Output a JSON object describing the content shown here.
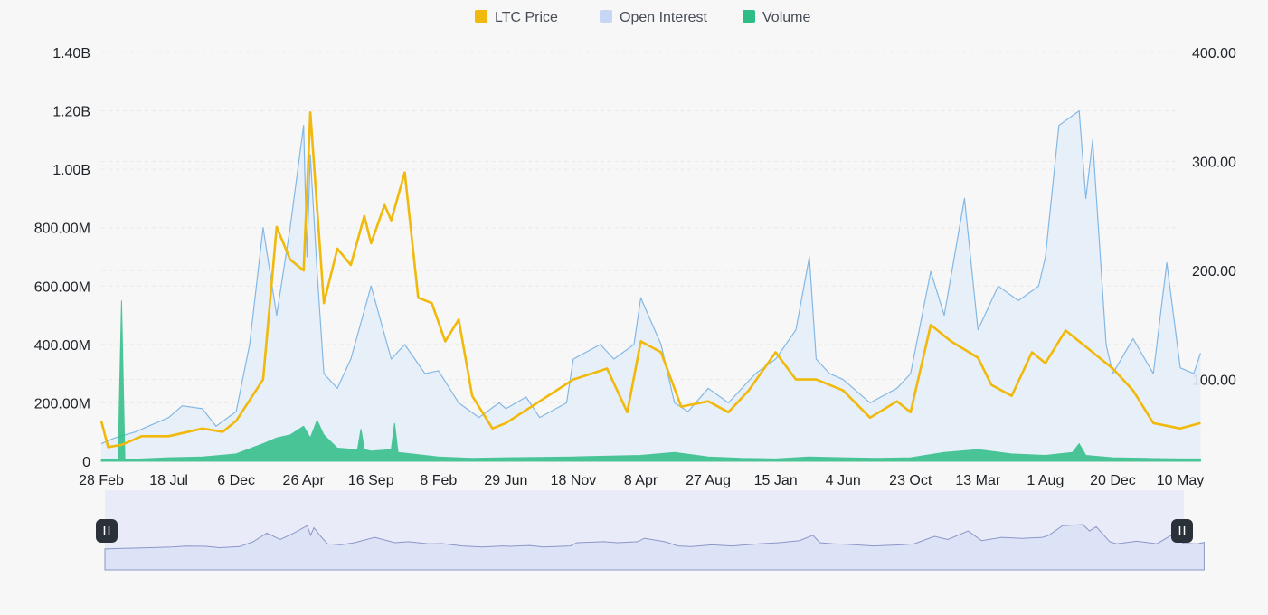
{
  "colors": {
    "price": "#f0b90b",
    "open_interest": "#84b8e4",
    "open_interest_fill": "#e4edf8",
    "volume": "#2ebd85",
    "navigator_fill": "#dde3f7",
    "navigator_line": "#8c96c8",
    "handle": "#2b3139"
  },
  "chart_data": {
    "type": "line",
    "legend": {
      "placement": "top-center",
      "items": [
        {
          "name": "LTC Price",
          "icon": "square-swatch-icon"
        },
        {
          "name": "Open Interest",
          "icon": "square-swatch-icon"
        },
        {
          "name": "Volume",
          "icon": "square-swatch-icon"
        }
      ]
    },
    "x_tick_labels": [
      "28 Feb",
      "18 Jul",
      "6 Dec",
      "26 Apr",
      "16 Sep",
      "8 Feb",
      "29 Jun",
      "18 Nov",
      "8 Apr",
      "27 Aug",
      "15 Jan",
      "4 Jun",
      "23 Oct",
      "13 Mar",
      "1 Aug",
      "20 Dec",
      "10 May"
    ],
    "y_left": {
      "ylim": [
        0,
        1400000000
      ],
      "tick_labels": [
        "0",
        "200.00M",
        "400.00M",
        "600.00M",
        "800.00M",
        "1.00B",
        "1.20B",
        "1.40B"
      ],
      "tick_values": [
        0,
        200000000,
        400000000,
        600000000,
        800000000,
        1000000000,
        1200000000,
        1400000000
      ]
    },
    "y_right": {
      "ylim": [
        25,
        400
      ],
      "tick_labels": [
        "100.00",
        "200.00",
        "300.00",
        "400.00"
      ],
      "tick_values": [
        100,
        200,
        300,
        400
      ]
    },
    "grid": true,
    "series": [
      {
        "name": "LTC Price",
        "axis": "right",
        "x_index": [
          0,
          0.1,
          0.3,
          0.6,
          1,
          1.5,
          1.8,
          2,
          2.4,
          2.6,
          2.8,
          3,
          3.1,
          3.3,
          3.5,
          3.7,
          3.9,
          4,
          4.2,
          4.3,
          4.5,
          4.7,
          4.9,
          5.1,
          5.3,
          5.5,
          5.8,
          6,
          6.5,
          7,
          7.5,
          7.8,
          8,
          8.3,
          8.6,
          9,
          9.3,
          9.6,
          10,
          10.3,
          10.6,
          11,
          11.4,
          11.8,
          12,
          12.3,
          12.6,
          13,
          13.2,
          13.5,
          13.8,
          14,
          14.3,
          14.6,
          14.8,
          15,
          15.3,
          15.6,
          16,
          16.3
        ],
        "values": [
          62,
          38,
          40,
          48,
          48,
          55,
          52,
          62,
          100,
          240,
          210,
          200,
          345,
          170,
          220,
          205,
          250,
          225,
          260,
          246,
          290,
          175,
          170,
          135,
          155,
          85,
          55,
          60,
          80,
          100,
          110,
          70,
          135,
          125,
          75,
          80,
          70,
          90,
          125,
          100,
          100,
          90,
          65,
          80,
          70,
          150,
          135,
          120,
          95,
          85,
          125,
          115,
          145,
          130,
          120,
          110,
          90,
          60,
          55,
          60
        ]
      },
      {
        "name": "Open Interest",
        "axis": "left",
        "x_index": [
          0,
          0.2,
          0.5,
          1,
          1.2,
          1.5,
          1.7,
          2,
          2.2,
          2.4,
          2.6,
          2.8,
          3,
          3.05,
          3.1,
          3.2,
          3.3,
          3.5,
          3.7,
          4,
          4.3,
          4.5,
          4.8,
          5,
          5.3,
          5.6,
          5.9,
          6,
          6.3,
          6.5,
          6.9,
          7,
          7.4,
          7.6,
          7.9,
          8,
          8.3,
          8.5,
          8.7,
          9,
          9.3,
          9.7,
          10,
          10.3,
          10.5,
          10.6,
          10.8,
          11,
          11.4,
          11.8,
          12,
          12.3,
          12.5,
          12.8,
          13,
          13.3,
          13.6,
          13.9,
          14,
          14.2,
          14.5,
          14.6,
          14.7,
          14.9,
          15,
          15.3,
          15.6,
          15.8,
          16,
          16.2,
          16.3
        ],
        "values": [
          60000000,
          80000000,
          100000000,
          150000000,
          190000000,
          180000000,
          120000000,
          170000000,
          400000000,
          800000000,
          500000000,
          800000000,
          1150000000,
          700000000,
          1050000000,
          650000000,
          300000000,
          250000000,
          350000000,
          600000000,
          350000000,
          400000000,
          300000000,
          310000000,
          200000000,
          150000000,
          200000000,
          180000000,
          220000000,
          150000000,
          200000000,
          350000000,
          400000000,
          350000000,
          400000000,
          560000000,
          400000000,
          200000000,
          170000000,
          250000000,
          200000000,
          300000000,
          350000000,
          450000000,
          700000000,
          350000000,
          300000000,
          280000000,
          200000000,
          250000000,
          300000000,
          650000000,
          500000000,
          900000000,
          450000000,
          600000000,
          550000000,
          600000000,
          700000000,
          1150000000,
          1200000000,
          900000000,
          1100000000,
          400000000,
          300000000,
          420000000,
          300000000,
          680000000,
          320000000,
          300000000,
          370000000
        ]
      },
      {
        "name": "Volume",
        "axis": "left",
        "x_index": [
          0,
          0.25,
          0.3,
          0.35,
          1,
          1.5,
          2,
          2.4,
          2.6,
          2.8,
          3,
          3.1,
          3.2,
          3.3,
          3.5,
          3.8,
          3.85,
          3.9,
          4,
          4.3,
          4.35,
          4.4,
          4.6,
          5,
          5.5,
          6,
          7,
          8,
          8.5,
          9,
          9.5,
          10,
          10.5,
          11,
          11.5,
          12,
          12.5,
          13,
          13.5,
          14,
          14.4,
          14.5,
          14.6,
          15,
          15.5,
          16,
          16.3
        ],
        "values": [
          6000000,
          6000000,
          550000000,
          6000000,
          12000000,
          15000000,
          25000000,
          60000000,
          80000000,
          90000000,
          120000000,
          80000000,
          140000000,
          90000000,
          45000000,
          40000000,
          110000000,
          40000000,
          35000000,
          40000000,
          130000000,
          30000000,
          25000000,
          15000000,
          10000000,
          12000000,
          15000000,
          20000000,
          30000000,
          15000000,
          10000000,
          8000000,
          15000000,
          12000000,
          10000000,
          12000000,
          30000000,
          40000000,
          25000000,
          20000000,
          30000000,
          60000000,
          20000000,
          12000000,
          10000000,
          8000000,
          8000000
        ]
      }
    ]
  }
}
